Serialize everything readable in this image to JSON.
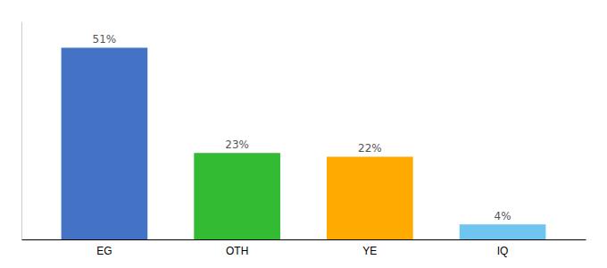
{
  "chart_data": {
    "type": "bar",
    "categories": [
      "EG",
      "OTH",
      "YE",
      "IQ"
    ],
    "values": [
      51,
      23,
      22,
      4
    ],
    "value_labels": [
      "51%",
      "23%",
      "22%",
      "4%"
    ],
    "colors": [
      "#4472C4",
      "#33BB33",
      "#FFAA00",
      "#6EC6F0"
    ],
    "ylim": [
      0,
      58
    ],
    "data_labels": true,
    "tick_labels": "x",
    "grid": false
  }
}
